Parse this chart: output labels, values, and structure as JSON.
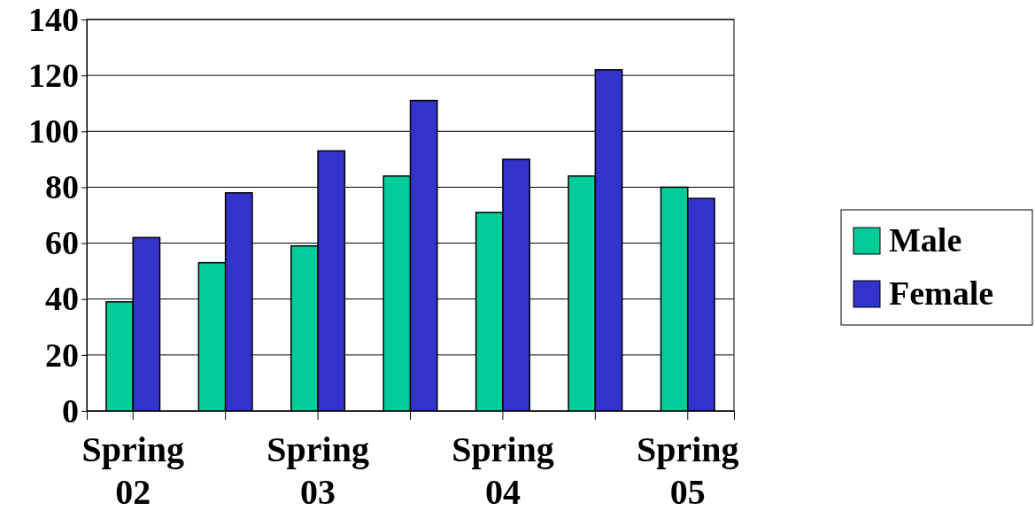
{
  "chart_data": {
    "type": "bar",
    "categories": [
      "Spring 02",
      null,
      "Spring 03",
      null,
      "Spring 04",
      null,
      "Spring 05"
    ],
    "series": [
      {
        "name": "Male",
        "color": "#00cc99",
        "values": [
          39,
          53,
          59,
          84,
          71,
          84,
          80
        ]
      },
      {
        "name": "Female",
        "color": "#3333cc",
        "values": [
          62,
          78,
          93,
          111,
          90,
          122,
          76
        ]
      }
    ],
    "ylim": [
      0,
      140
    ],
    "yticks": [
      0,
      20,
      40,
      60,
      80,
      100,
      120,
      140
    ],
    "grid": "y",
    "legend": "right"
  }
}
